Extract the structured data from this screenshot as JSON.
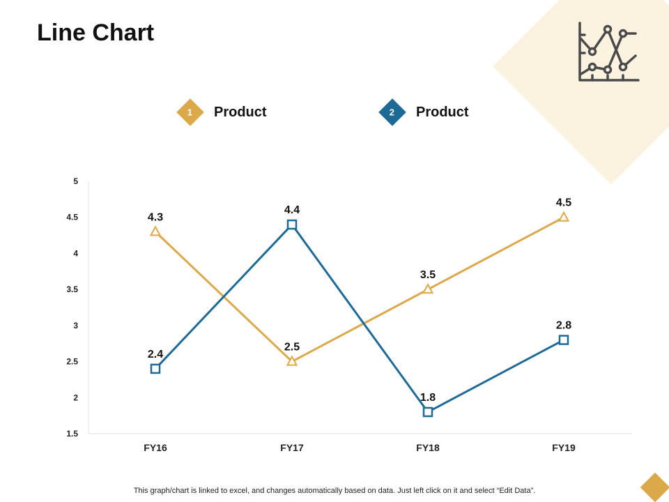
{
  "page": {
    "title": "Line Chart",
    "footer_note": "This graph/chart is linked to excel, and changes automatically based on data. Just left click on it and select “Edit Data”."
  },
  "legend": [
    {
      "number": "1",
      "label": "Product",
      "color": "#dba84a"
    },
    {
      "number": "2",
      "label": "Product",
      "color": "#1e6a97"
    }
  ],
  "icons": {
    "header": "line-chart-icon"
  },
  "colors": {
    "accent_gold": "#dba84a",
    "accent_blue": "#1e6a97",
    "deco_bg": "#fbf2e0"
  },
  "chart_data": {
    "type": "line",
    "title": "Line Chart",
    "categories": [
      "FY16",
      "FY17",
      "FY18",
      "FY19"
    ],
    "ylim": [
      1.5,
      5
    ],
    "yticks": [
      "1.5",
      "2",
      "2.5",
      "3",
      "3.5",
      "4",
      "4.5",
      "5"
    ],
    "grid": false,
    "series": [
      {
        "name": "Product 1",
        "color": "#dba84a",
        "marker": "triangle",
        "values": [
          4.3,
          2.5,
          3.5,
          4.5
        ],
        "labels": [
          "4.3",
          "2.5",
          "3.5",
          "4.5"
        ]
      },
      {
        "name": "Product 2",
        "color": "#1e6a97",
        "marker": "square",
        "values": [
          2.4,
          4.4,
          1.8,
          2.8
        ],
        "labels": [
          "2.4",
          "4.4",
          "1.8",
          "2.8"
        ]
      }
    ]
  }
}
